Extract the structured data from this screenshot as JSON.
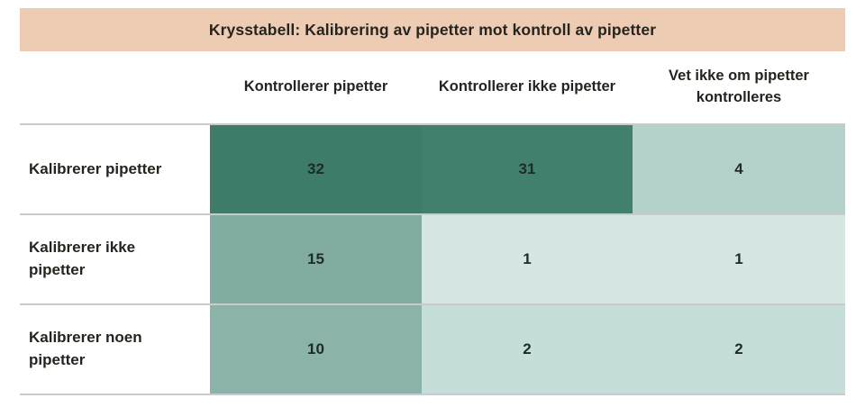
{
  "title_bar": {
    "text": "Krysstabell: Kalibrering av pipetter mot kontroll av pipetter",
    "background": "#edccb3",
    "text_color": "#26241f"
  },
  "table": {
    "column_headers": [
      "Kontrollerer pipetter",
      "Kontrollerer ikke pipetter",
      "Vet ikke om pipetter kontrolleres"
    ],
    "rows": [
      {
        "label": "Kalibrerer pipetter",
        "cells": [
          {
            "value": "32",
            "bg": "#3e7c6a"
          },
          {
            "value": "31",
            "bg": "#42806e"
          },
          {
            "value": "4",
            "bg": "#b4d2cb"
          }
        ]
      },
      {
        "label": "Kalibrerer ikke pipetter",
        "cells": [
          {
            "value": "15",
            "bg": "#82aca1"
          },
          {
            "value": "1",
            "bg": "#d6e6e2"
          },
          {
            "value": "1",
            "bg": "#d6e6e2"
          }
        ]
      },
      {
        "label": "Kalibrerer noen pipetter",
        "cells": [
          {
            "value": "10",
            "bg": "#8bb3a9"
          },
          {
            "value": "2",
            "bg": "#c5ded9"
          },
          {
            "value": "2",
            "bg": "#c5ded9"
          }
        ]
      }
    ],
    "divider_color": "#c9cbca"
  },
  "chart_data": {
    "type": "heatmap",
    "title": "Krysstabell: Kalibrering av pipetter mot kontroll av pipetter",
    "columns": [
      "Kontrollerer pipetter",
      "Kontrollerer ikke pipetter",
      "Vet ikke om pipetter kontrolleres"
    ],
    "rows": [
      "Kalibrerer pipetter",
      "Kalibrerer ikke pipetter",
      "Kalibrerer noen pipetter"
    ],
    "values": [
      [
        32,
        31,
        4
      ],
      [
        15,
        1,
        1
      ],
      [
        10,
        2,
        2
      ]
    ],
    "color_scale": {
      "min_color": "#d6e6e2",
      "max_color": "#3e7c6a",
      "min": 1,
      "max": 32
    },
    "legend": "none",
    "grid": "off"
  }
}
